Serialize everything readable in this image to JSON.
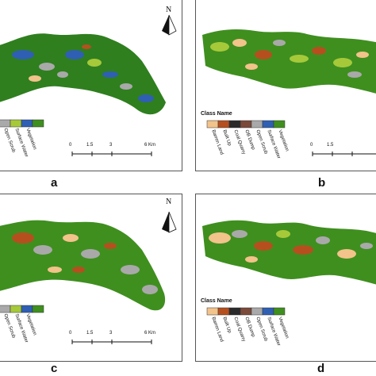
{
  "panels": [
    {
      "id": "a",
      "caption": "a",
      "north": "N",
      "has_title": false
    },
    {
      "id": "b",
      "caption": "b",
      "north": "",
      "has_title": true
    },
    {
      "id": "c",
      "caption": "c",
      "north": "N",
      "has_title": false
    },
    {
      "id": "d",
      "caption": "d",
      "north": "",
      "has_title": true
    }
  ],
  "legend": {
    "title": "Class Name",
    "classes": [
      {
        "name": "Barren Land",
        "color": "#f2c38a"
      },
      {
        "name": "Built Up",
        "color": "#b5501e"
      },
      {
        "name": "Coal Quarry",
        "color": "#2a2a2a"
      },
      {
        "name": "OB Dump",
        "color": "#7b4a3a"
      },
      {
        "name": "Open Scrub",
        "color": "#a9a9a9"
      },
      {
        "name": "Surface Water",
        "color": "#2f5fb3"
      },
      {
        "name": "Vegetation",
        "color": "#3f8f1f"
      }
    ]
  },
  "scale_bar": {
    "ticks": [
      "0",
      "1.5",
      "3",
      "6 Km"
    ]
  },
  "colors": {
    "light_green": "#a6c93a",
    "border": "#555555"
  }
}
